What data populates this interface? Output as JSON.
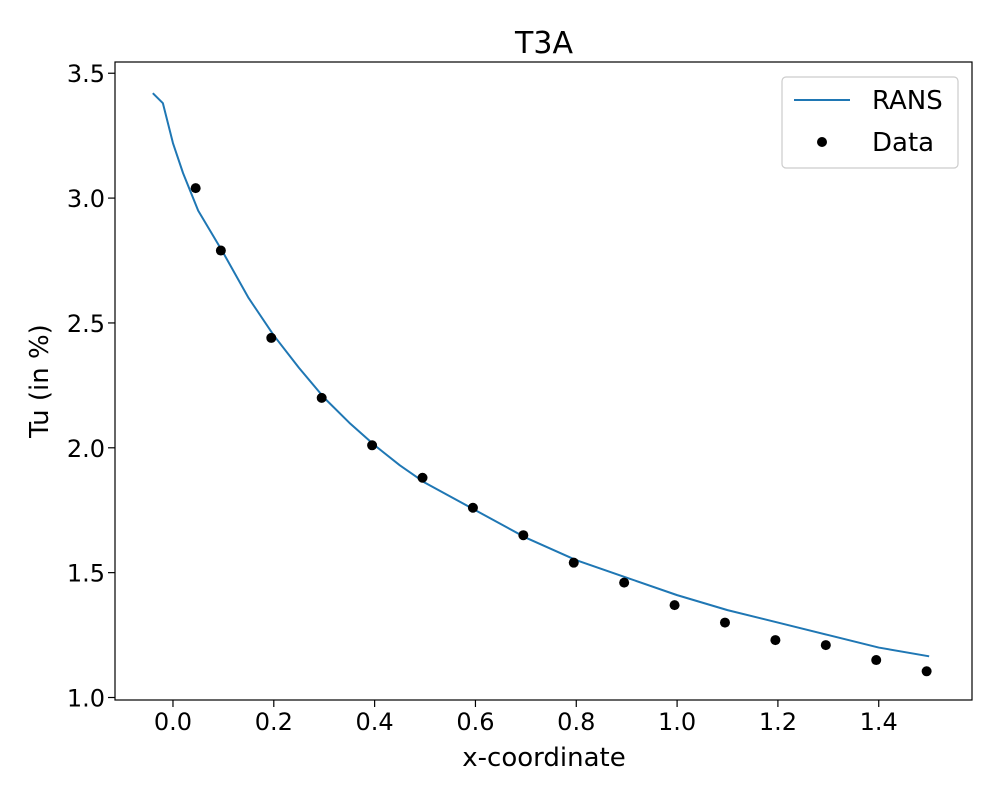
{
  "chart_data": {
    "type": "line",
    "title": "T3A",
    "xlabel": "x-coordinate",
    "ylabel": "Tu (in %)",
    "xlim": [
      -0.115,
      1.585
    ],
    "ylim": [
      0.99,
      3.545
    ],
    "xticks": [
      "0.0",
      "0.2",
      "0.4",
      "0.6",
      "0.8",
      "1.0",
      "1.2",
      "1.4"
    ],
    "xtick_values": [
      0.0,
      0.2,
      0.4,
      0.6,
      0.8,
      1.0,
      1.2,
      1.4
    ],
    "yticks": [
      "1.0",
      "1.5",
      "2.0",
      "2.5",
      "3.0",
      "3.5"
    ],
    "ytick_values": [
      1.0,
      1.5,
      2.0,
      2.5,
      3.0,
      3.5
    ],
    "grid": false,
    "legend_position": "top-right",
    "series": [
      {
        "name": "RANS",
        "kind": "line",
        "color": "#1f77b4",
        "points": [
          [
            -0.04,
            3.42
          ],
          [
            -0.02,
            3.38
          ],
          [
            0.0,
            3.22
          ],
          [
            0.02,
            3.1
          ],
          [
            0.05,
            2.95
          ],
          [
            0.1,
            2.78
          ],
          [
            0.15,
            2.6
          ],
          [
            0.2,
            2.45
          ],
          [
            0.25,
            2.32
          ],
          [
            0.3,
            2.2
          ],
          [
            0.35,
            2.1
          ],
          [
            0.4,
            2.01
          ],
          [
            0.45,
            1.93
          ],
          [
            0.5,
            1.86
          ],
          [
            0.6,
            1.75
          ],
          [
            0.7,
            1.64
          ],
          [
            0.8,
            1.55
          ],
          [
            0.9,
            1.48
          ],
          [
            1.0,
            1.41
          ],
          [
            1.1,
            1.35
          ],
          [
            1.2,
            1.3
          ],
          [
            1.3,
            1.25
          ],
          [
            1.4,
            1.2
          ],
          [
            1.5,
            1.165
          ]
        ]
      },
      {
        "name": "Data",
        "kind": "scatter",
        "color": "#000000",
        "points": [
          [
            0.045,
            3.04
          ],
          [
            0.095,
            2.79
          ],
          [
            0.195,
            2.44
          ],
          [
            0.295,
            2.2
          ],
          [
            0.395,
            2.01
          ],
          [
            0.495,
            1.88
          ],
          [
            0.595,
            1.76
          ],
          [
            0.695,
            1.65
          ],
          [
            0.795,
            1.54
          ],
          [
            0.895,
            1.46
          ],
          [
            0.995,
            1.37
          ],
          [
            1.095,
            1.3
          ],
          [
            1.195,
            1.23
          ],
          [
            1.295,
            1.21
          ],
          [
            1.395,
            1.15
          ],
          [
            1.495,
            1.105
          ]
        ]
      }
    ]
  }
}
